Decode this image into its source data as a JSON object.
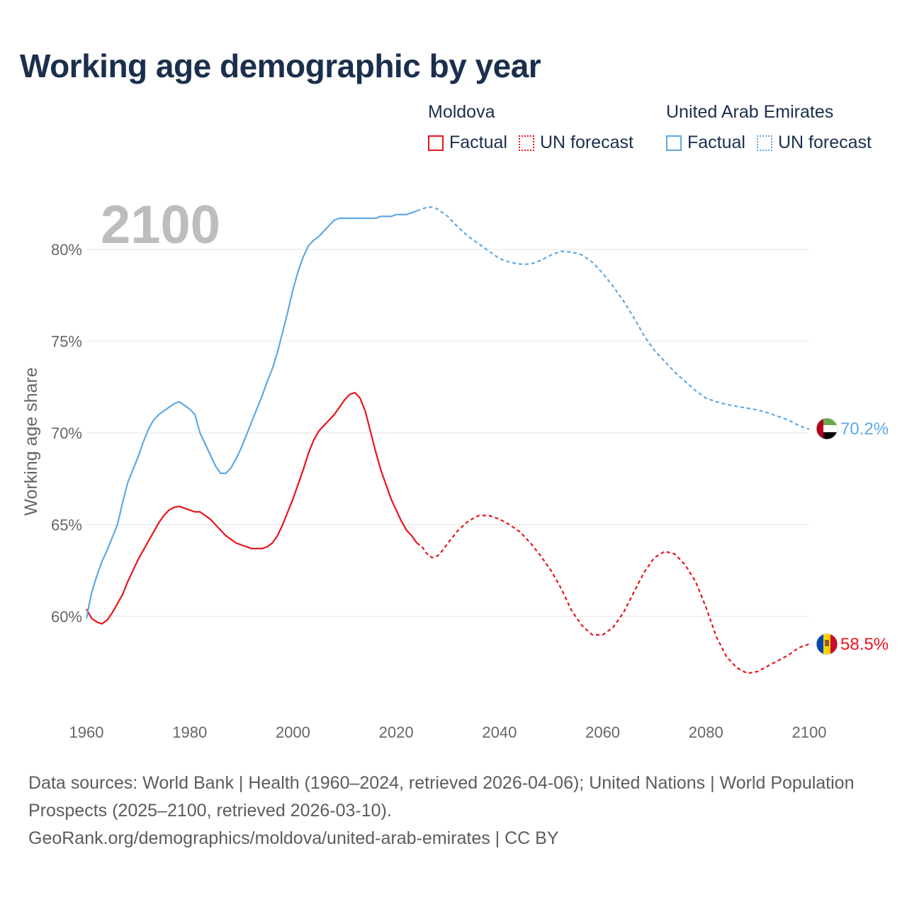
{
  "title": "Working age demographic by year",
  "year_watermark": "2100",
  "legend": {
    "groups": [
      {
        "country": "Moldova",
        "factual_label": "Factual",
        "forecast_label": "UN forecast",
        "color": "#e8141c"
      },
      {
        "country": "United Arab Emirates",
        "factual_label": "Factual",
        "forecast_label": "UN forecast",
        "color": "#5fa8e4"
      }
    ]
  },
  "footer": {
    "sources": "Data sources: World Bank | Health (1960–2024, retrieved 2026-04-06); United Nations | World Population Prospects (2025–2100, retrieved 2026-03-10).",
    "url": "GeoRank.org/demographics/moldova/united-arab-emirates | CC BY"
  },
  "chart_data": {
    "type": "line",
    "title": "Working age demographic by year",
    "xlabel": "",
    "ylabel": "Working age share",
    "xlim": [
      1960,
      2100
    ],
    "ylim": [
      55,
      83
    ],
    "xticks": [
      1960,
      1980,
      2000,
      2020,
      2040,
      2060,
      2080,
      2100
    ],
    "yticks": [
      60,
      65,
      70,
      75,
      80
    ],
    "ytick_labels": [
      "60%",
      "65%",
      "70%",
      "75%",
      "80%"
    ],
    "grid": true,
    "factual_until": 2024,
    "series": [
      {
        "name": "Moldova",
        "color": "#e8141c",
        "end_label": "58.5%",
        "points": [
          [
            1960,
            60.4
          ],
          [
            1961,
            59.9
          ],
          [
            1962,
            59.7
          ],
          [
            1963,
            59.6
          ],
          [
            1964,
            59.8
          ],
          [
            1965,
            60.2
          ],
          [
            1966,
            60.7
          ],
          [
            1967,
            61.2
          ],
          [
            1968,
            61.9
          ],
          [
            1969,
            62.5
          ],
          [
            1970,
            63.1
          ],
          [
            1971,
            63.6
          ],
          [
            1972,
            64.1
          ],
          [
            1973,
            64.6
          ],
          [
            1974,
            65.1
          ],
          [
            1975,
            65.5
          ],
          [
            1976,
            65.8
          ],
          [
            1977,
            65.95
          ],
          [
            1978,
            66.0
          ],
          [
            1979,
            65.9
          ],
          [
            1980,
            65.8
          ],
          [
            1981,
            65.7
          ],
          [
            1982,
            65.7
          ],
          [
            1983,
            65.5
          ],
          [
            1984,
            65.3
          ],
          [
            1985,
            65.0
          ],
          [
            1986,
            64.7
          ],
          [
            1987,
            64.4
          ],
          [
            1988,
            64.2
          ],
          [
            1989,
            64.0
          ],
          [
            1990,
            63.9
          ],
          [
            1991,
            63.8
          ],
          [
            1992,
            63.7
          ],
          [
            1993,
            63.7
          ],
          [
            1994,
            63.7
          ],
          [
            1995,
            63.8
          ],
          [
            1996,
            64.0
          ],
          [
            1997,
            64.4
          ],
          [
            1998,
            65.0
          ],
          [
            1999,
            65.7
          ],
          [
            2000,
            66.4
          ],
          [
            2001,
            67.2
          ],
          [
            2002,
            68.0
          ],
          [
            2003,
            68.9
          ],
          [
            2004,
            69.6
          ],
          [
            2005,
            70.1
          ],
          [
            2006,
            70.4
          ],
          [
            2007,
            70.7
          ],
          [
            2008,
            71.0
          ],
          [
            2009,
            71.4
          ],
          [
            2010,
            71.8
          ],
          [
            2011,
            72.1
          ],
          [
            2012,
            72.2
          ],
          [
            2013,
            71.9
          ],
          [
            2014,
            71.2
          ],
          [
            2015,
            70.1
          ],
          [
            2016,
            69.0
          ],
          [
            2017,
            68.0
          ],
          [
            2018,
            67.2
          ],
          [
            2019,
            66.4
          ],
          [
            2020,
            65.8
          ],
          [
            2021,
            65.2
          ],
          [
            2022,
            64.7
          ],
          [
            2023,
            64.4
          ],
          [
            2024,
            64.0
          ],
          [
            2025,
            63.8
          ],
          [
            2026,
            63.4
          ],
          [
            2027,
            63.2
          ],
          [
            2028,
            63.3
          ],
          [
            2029,
            63.6
          ],
          [
            2030,
            64.0
          ],
          [
            2032,
            64.7
          ],
          [
            2034,
            65.2
          ],
          [
            2036,
            65.5
          ],
          [
            2038,
            65.5
          ],
          [
            2040,
            65.3
          ],
          [
            2042,
            65.0
          ],
          [
            2044,
            64.6
          ],
          [
            2046,
            64.0
          ],
          [
            2048,
            63.3
          ],
          [
            2050,
            62.5
          ],
          [
            2052,
            61.5
          ],
          [
            2054,
            60.3
          ],
          [
            2056,
            59.5
          ],
          [
            2058,
            59.0
          ],
          [
            2060,
            59.0
          ],
          [
            2062,
            59.4
          ],
          [
            2064,
            60.2
          ],
          [
            2066,
            61.3
          ],
          [
            2068,
            62.4
          ],
          [
            2070,
            63.2
          ],
          [
            2072,
            63.55
          ],
          [
            2074,
            63.4
          ],
          [
            2076,
            62.8
          ],
          [
            2078,
            61.9
          ],
          [
            2080,
            60.5
          ],
          [
            2082,
            58.9
          ],
          [
            2084,
            57.8
          ],
          [
            2086,
            57.2
          ],
          [
            2088,
            56.9
          ],
          [
            2090,
            57.0
          ],
          [
            2092,
            57.3
          ],
          [
            2094,
            57.6
          ],
          [
            2096,
            57.9
          ],
          [
            2098,
            58.3
          ],
          [
            2100,
            58.5
          ]
        ]
      },
      {
        "name": "United Arab Emirates",
        "color": "#5fa8e4",
        "end_label": "70.2%",
        "points": [
          [
            1960,
            59.9
          ],
          [
            1961,
            61.3
          ],
          [
            1962,
            62.2
          ],
          [
            1963,
            63.0
          ],
          [
            1964,
            63.6
          ],
          [
            1965,
            64.3
          ],
          [
            1966,
            65.0
          ],
          [
            1967,
            66.2
          ],
          [
            1968,
            67.3
          ],
          [
            1969,
            68.0
          ],
          [
            1970,
            68.7
          ],
          [
            1971,
            69.5
          ],
          [
            1972,
            70.2
          ],
          [
            1973,
            70.7
          ],
          [
            1974,
            71.0
          ],
          [
            1975,
            71.2
          ],
          [
            1976,
            71.4
          ],
          [
            1977,
            71.6
          ],
          [
            1978,
            71.7
          ],
          [
            1979,
            71.5
          ],
          [
            1980,
            71.3
          ],
          [
            1981,
            71.0
          ],
          [
            1982,
            70.0
          ],
          [
            1983,
            69.4
          ],
          [
            1984,
            68.8
          ],
          [
            1985,
            68.2
          ],
          [
            1986,
            67.8
          ],
          [
            1987,
            67.8
          ],
          [
            1988,
            68.1
          ],
          [
            1989,
            68.6
          ],
          [
            1990,
            69.2
          ],
          [
            1991,
            69.9
          ],
          [
            1992,
            70.6
          ],
          [
            1993,
            71.3
          ],
          [
            1994,
            72.0
          ],
          [
            1995,
            72.8
          ],
          [
            1996,
            73.5
          ],
          [
            1997,
            74.4
          ],
          [
            1998,
            75.5
          ],
          [
            1999,
            76.6
          ],
          [
            2000,
            77.8
          ],
          [
            2001,
            78.8
          ],
          [
            2002,
            79.6
          ],
          [
            2003,
            80.2
          ],
          [
            2004,
            80.5
          ],
          [
            2005,
            80.7
          ],
          [
            2006,
            81.0
          ],
          [
            2007,
            81.3
          ],
          [
            2008,
            81.6
          ],
          [
            2009,
            81.7
          ],
          [
            2010,
            81.7
          ],
          [
            2012,
            81.7
          ],
          [
            2014,
            81.7
          ],
          [
            2016,
            81.7
          ],
          [
            2017,
            81.8
          ],
          [
            2019,
            81.8
          ],
          [
            2020,
            81.9
          ],
          [
            2022,
            81.9
          ],
          [
            2024,
            82.1
          ],
          [
            2025,
            82.2
          ],
          [
            2026,
            82.3
          ],
          [
            2027,
            82.3
          ],
          [
            2028,
            82.2
          ],
          [
            2030,
            81.8
          ],
          [
            2032,
            81.2
          ],
          [
            2034,
            80.7
          ],
          [
            2036,
            80.3
          ],
          [
            2038,
            79.9
          ],
          [
            2040,
            79.5
          ],
          [
            2042,
            79.3
          ],
          [
            2044,
            79.2
          ],
          [
            2046,
            79.2
          ],
          [
            2048,
            79.4
          ],
          [
            2050,
            79.7
          ],
          [
            2052,
            79.9
          ],
          [
            2054,
            79.85
          ],
          [
            2056,
            79.7
          ],
          [
            2058,
            79.3
          ],
          [
            2060,
            78.7
          ],
          [
            2062,
            78.0
          ],
          [
            2064,
            77.2
          ],
          [
            2066,
            76.3
          ],
          [
            2068,
            75.3
          ],
          [
            2070,
            74.5
          ],
          [
            2072,
            73.9
          ],
          [
            2074,
            73.3
          ],
          [
            2076,
            72.8
          ],
          [
            2078,
            72.3
          ],
          [
            2080,
            71.9
          ],
          [
            2082,
            71.7
          ],
          [
            2084,
            71.55
          ],
          [
            2086,
            71.45
          ],
          [
            2088,
            71.35
          ],
          [
            2090,
            71.25
          ],
          [
            2092,
            71.1
          ],
          [
            2094,
            70.9
          ],
          [
            2096,
            70.7
          ],
          [
            2098,
            70.4
          ],
          [
            2100,
            70.2
          ]
        ]
      }
    ]
  }
}
